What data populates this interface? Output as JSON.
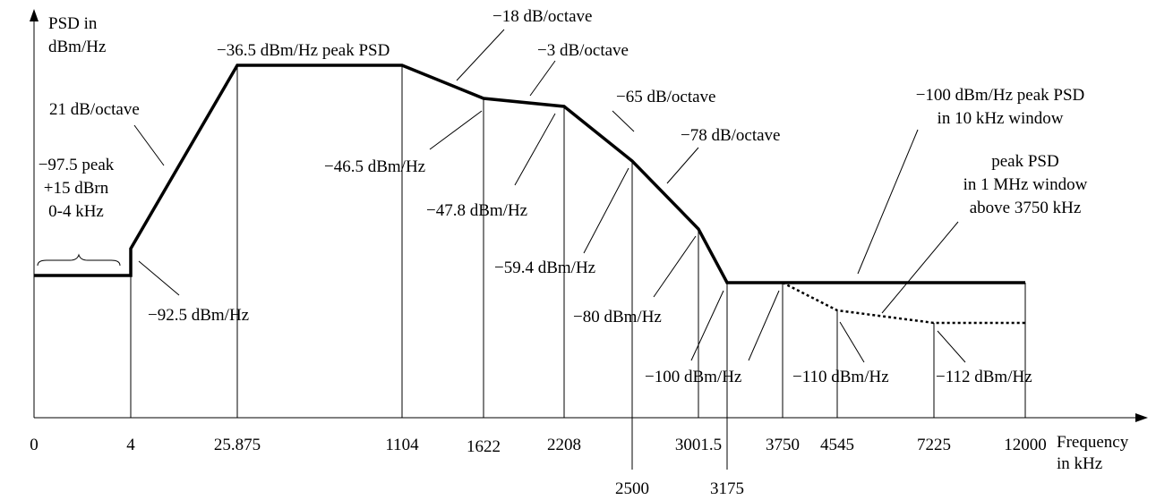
{
  "axes": {
    "y_label": [
      "PSD in",
      "dBm/Hz"
    ],
    "x_label": [
      "Frequency",
      "in kHz"
    ]
  },
  "x_ticks": [
    "0",
    "4",
    "25.875",
    "1104",
    "1622",
    "2208",
    "2500",
    "3001.5",
    "3175",
    "3750",
    "4545",
    "7225",
    "12000"
  ],
  "annotations": {
    "slope_21": "21 dB/octave",
    "peak_36_5": "−36.5 dBm/Hz peak PSD",
    "slope_18": "−18 dB/octave",
    "slope_3": "−3 dB/octave",
    "slope_65": "−65 dB/octave",
    "slope_78": "−78 dB/octave",
    "peak_100": [
      "−100 dBm/Hz peak PSD",
      "in 10 kHz window"
    ],
    "peak_1mhz": [
      "peak PSD",
      "in 1 MHz window",
      "above 3750 kHz"
    ],
    "voice": [
      "−97.5 peak",
      "+15 dBrn",
      "0-4 kHz"
    ],
    "level_92_5": "−92.5 dBm/Hz",
    "level_46_5": "−46.5 dBm/Hz",
    "level_47_8": "−47.8 dBm/Hz",
    "level_59_4": "−59.4 dBm/Hz",
    "level_80": "−80 dBm/Hz",
    "level_100": "−100 dBm/Hz",
    "level_110": "−110 dBm/Hz",
    "level_112": "−112 dBm/Hz"
  }
}
